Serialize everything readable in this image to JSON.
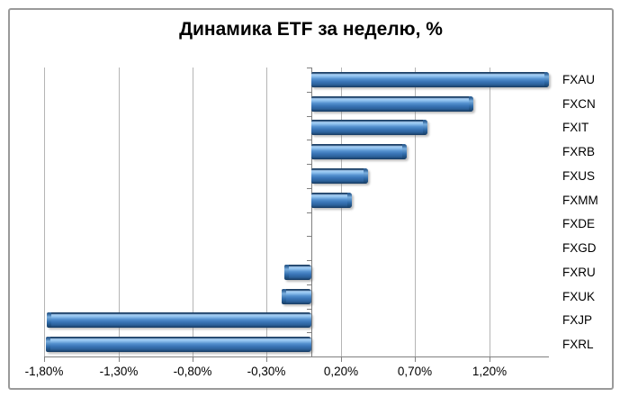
{
  "window": {
    "background": "#ffffff",
    "frame_border_color": "#9a9a9a"
  },
  "colors": {
    "bar_main": "#3b76b8",
    "bar_highlight": "#a9cff4",
    "bar_dark_edge": "#1b3f66",
    "gridline": "#b5b5b5",
    "axis": "#808080",
    "text": "#000000"
  },
  "chart_data": {
    "type": "bar",
    "orientation": "horizontal",
    "title": "Динамика ETF за неделю, %",
    "categories": [
      "FXAU",
      "FXCN",
      "FXIT",
      "FXRB",
      "FXUS",
      "FXMM",
      "FXDE",
      "FXGD",
      "FXRU",
      "FXUK",
      "FXJP",
      "FXRL"
    ],
    "values": [
      1.6,
      1.09,
      0.78,
      0.64,
      0.38,
      0.27,
      0.0,
      0.0,
      -0.18,
      -0.2,
      -1.78,
      -1.79
    ],
    "x_ticks": [
      {
        "value": -1.8,
        "label": "-1,80%"
      },
      {
        "value": -1.3,
        "label": "-1,30%"
      },
      {
        "value": -0.8,
        "label": "-0,80%"
      },
      {
        "value": -0.3,
        "label": "-0,30%"
      },
      {
        "value": 0.2,
        "label": "0,20%"
      },
      {
        "value": 0.7,
        "label": "0,70%"
      },
      {
        "value": 1.2,
        "label": "1,20%"
      }
    ],
    "xlabel": "",
    "ylabel": "",
    "xlim": [
      -1.8,
      1.6
    ],
    "grid": true,
    "legend_position": "none",
    "category_labels_position": "right",
    "value_format": "percent_comma_decimal"
  }
}
